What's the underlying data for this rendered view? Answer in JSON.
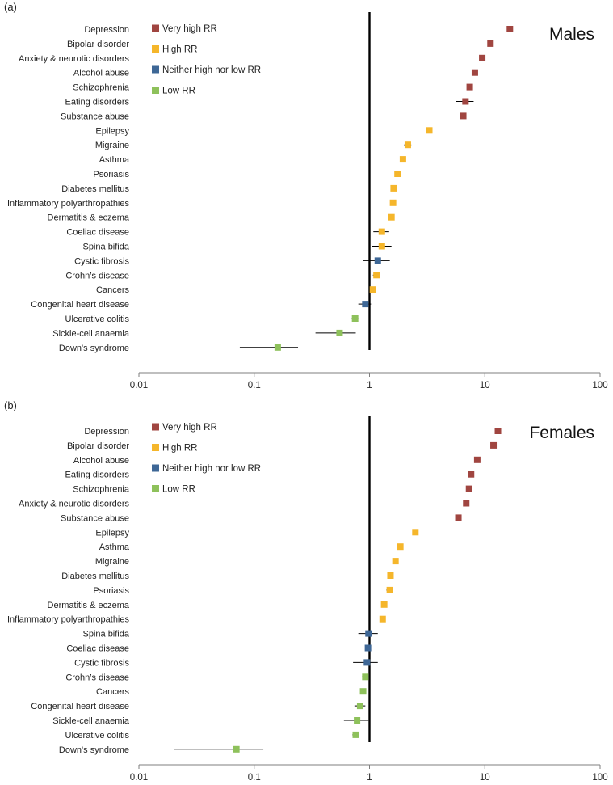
{
  "colors": {
    "very_high": "#a04540",
    "high": "#f5b62b",
    "neither": "#3e6796",
    "low": "#8ec15b"
  },
  "chart_data": [
    {
      "type": "scatter",
      "panel_label": "(a)",
      "title": "Males",
      "xscale": "log",
      "xlim": [
        0.01,
        100
      ],
      "x_ticks": [
        "0.01",
        "0.1",
        "1",
        "10",
        "100"
      ],
      "reference_line_x": 1,
      "legend": [
        {
          "key": "very_high",
          "label": "Very high RR"
        },
        {
          "key": "high",
          "label": "High RR"
        },
        {
          "key": "neither",
          "label": "Neither high nor low RR"
        },
        {
          "key": "low",
          "label": "Low RR"
        }
      ],
      "points": [
        {
          "label": "Depression",
          "rr": 16.5,
          "lo": 16.0,
          "hi": 17.0,
          "group": "very_high"
        },
        {
          "label": "Bipolar disorder",
          "rr": 11.2,
          "lo": 10.7,
          "hi": 11.7,
          "group": "very_high"
        },
        {
          "label": "Anxiety & neurotic disorders",
          "rr": 9.5,
          "lo": 9.2,
          "hi": 9.8,
          "group": "very_high"
        },
        {
          "label": "Alcohol abuse",
          "rr": 8.2,
          "lo": 7.9,
          "hi": 8.5,
          "group": "very_high"
        },
        {
          "label": "Schizophrenia",
          "rr": 7.4,
          "lo": 7.1,
          "hi": 7.7,
          "group": "very_high"
        },
        {
          "label": "Eating disorders",
          "rr": 6.8,
          "lo": 5.6,
          "hi": 8.0,
          "group": "very_high"
        },
        {
          "label": "Substance abuse",
          "rr": 6.5,
          "lo": 6.3,
          "hi": 6.7,
          "group": "very_high"
        },
        {
          "label": "Epilepsy",
          "rr": 3.3,
          "lo": 3.2,
          "hi": 3.4,
          "group": "high"
        },
        {
          "label": "Migraine",
          "rr": 2.15,
          "lo": 2.0,
          "hi": 2.3,
          "group": "high"
        },
        {
          "label": "Asthma",
          "rr": 1.95,
          "lo": 1.9,
          "hi": 2.0,
          "group": "high"
        },
        {
          "label": "Psoriasis",
          "rr": 1.75,
          "lo": 1.65,
          "hi": 1.85,
          "group": "high"
        },
        {
          "label": "Diabetes mellitus",
          "rr": 1.62,
          "lo": 1.58,
          "hi": 1.66,
          "group": "high"
        },
        {
          "label": "Inflammatory polyarthropathies",
          "rr": 1.6,
          "lo": 1.55,
          "hi": 1.65,
          "group": "high"
        },
        {
          "label": "Dermatitis & eczema",
          "rr": 1.55,
          "lo": 1.45,
          "hi": 1.65,
          "group": "high"
        },
        {
          "label": "Coeliac disease",
          "rr": 1.28,
          "lo": 1.08,
          "hi": 1.48,
          "group": "high"
        },
        {
          "label": "Spina bifida",
          "rr": 1.28,
          "lo": 1.05,
          "hi": 1.55,
          "group": "high"
        },
        {
          "label": "Cystic fibrosis",
          "rr": 1.18,
          "lo": 0.88,
          "hi": 1.5,
          "group": "neither"
        },
        {
          "label": "Crohn’s disease",
          "rr": 1.15,
          "lo": 1.07,
          "hi": 1.23,
          "group": "high"
        },
        {
          "label": "Cancers",
          "rr": 1.07,
          "lo": 1.04,
          "hi": 1.1,
          "group": "high"
        },
        {
          "label": "Congenital heart disease",
          "rr": 0.92,
          "lo": 0.8,
          "hi": 1.03,
          "group": "neither"
        },
        {
          "label": "Ulcerative colitis",
          "rr": 0.75,
          "lo": 0.7,
          "hi": 0.8,
          "group": "low"
        },
        {
          "label": "Sickle-cell anaemia",
          "rr": 0.55,
          "lo": 0.34,
          "hi": 0.76,
          "group": "low"
        },
        {
          "label": "Down's syndrome",
          "rr": 0.16,
          "lo": 0.075,
          "hi": 0.24,
          "group": "low"
        }
      ]
    },
    {
      "type": "scatter",
      "panel_label": "(b)",
      "title": "Females",
      "xscale": "log",
      "xlim": [
        0.01,
        100
      ],
      "x_ticks": [
        "0.01",
        "0.1",
        "1",
        "10",
        "100"
      ],
      "reference_line_x": 1,
      "legend": [
        {
          "key": "very_high",
          "label": "Very high RR"
        },
        {
          "key": "high",
          "label": "High RR"
        },
        {
          "key": "neither",
          "label": "Neither high nor low RR"
        },
        {
          "key": "low",
          "label": "Low RR"
        }
      ],
      "points": [
        {
          "label": "Depression",
          "rr": 13.0,
          "lo": 12.6,
          "hi": 13.4,
          "group": "very_high"
        },
        {
          "label": "Bipolar disorder",
          "rr": 11.9,
          "lo": 11.5,
          "hi": 12.3,
          "group": "very_high"
        },
        {
          "label": "Alcohol abuse",
          "rr": 8.6,
          "lo": 8.3,
          "hi": 8.9,
          "group": "very_high"
        },
        {
          "label": "Eating disorders",
          "rr": 7.6,
          "lo": 7.4,
          "hi": 7.8,
          "group": "very_high"
        },
        {
          "label": "Schizophrenia",
          "rr": 7.3,
          "lo": 7.0,
          "hi": 7.6,
          "group": "very_high"
        },
        {
          "label": "Anxiety & neurotic disorders",
          "rr": 6.9,
          "lo": 6.7,
          "hi": 7.1,
          "group": "very_high"
        },
        {
          "label": "Substance abuse",
          "rr": 5.9,
          "lo": 5.7,
          "hi": 6.1,
          "group": "very_high"
        },
        {
          "label": "Epilepsy",
          "rr": 2.5,
          "lo": 2.45,
          "hi": 2.55,
          "group": "high"
        },
        {
          "label": "Asthma",
          "rr": 1.85,
          "lo": 1.8,
          "hi": 1.9,
          "group": "high"
        },
        {
          "label": "Migraine",
          "rr": 1.68,
          "lo": 1.63,
          "hi": 1.73,
          "group": "high"
        },
        {
          "label": "Diabetes mellitus",
          "rr": 1.52,
          "lo": 1.48,
          "hi": 1.56,
          "group": "high"
        },
        {
          "label": "Psoriasis",
          "rr": 1.5,
          "lo": 1.4,
          "hi": 1.6,
          "group": "high"
        },
        {
          "label": "Dermatitis & eczema",
          "rr": 1.34,
          "lo": 1.3,
          "hi": 1.38,
          "group": "high"
        },
        {
          "label": "Inflammatory polyarthropathies",
          "rr": 1.3,
          "lo": 1.26,
          "hi": 1.34,
          "group": "high"
        },
        {
          "label": "Spina bifida",
          "rr": 0.98,
          "lo": 0.8,
          "hi": 1.18,
          "group": "neither"
        },
        {
          "label": "Coeliac disease",
          "rr": 0.97,
          "lo": 0.88,
          "hi": 1.06,
          "group": "neither"
        },
        {
          "label": "Cystic fibrosis",
          "rr": 0.95,
          "lo": 0.72,
          "hi": 1.18,
          "group": "neither"
        },
        {
          "label": "Crohn’s disease",
          "rr": 0.92,
          "lo": 0.86,
          "hi": 0.98,
          "group": "low"
        },
        {
          "label": "Cancers",
          "rr": 0.88,
          "lo": 0.86,
          "hi": 0.9,
          "group": "low"
        },
        {
          "label": "Congenital heart disease",
          "rr": 0.83,
          "lo": 0.74,
          "hi": 0.92,
          "group": "low"
        },
        {
          "label": "Sickle-cell anaemia",
          "rr": 0.78,
          "lo": 0.6,
          "hi": 0.98,
          "group": "low"
        },
        {
          "label": "Ulcerative colitis",
          "rr": 0.76,
          "lo": 0.71,
          "hi": 0.81,
          "group": "low"
        },
        {
          "label": "Down's syndrome",
          "rr": 0.07,
          "lo": 0.02,
          "hi": 0.12,
          "group": "low"
        }
      ]
    }
  ]
}
